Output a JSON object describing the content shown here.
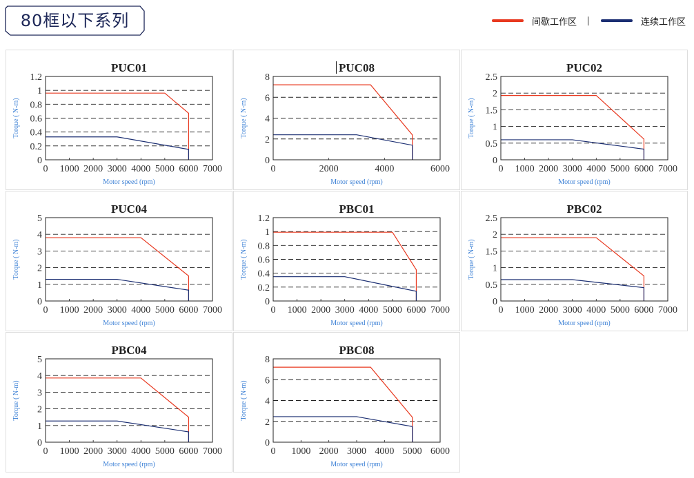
{
  "header": {
    "title": "80框以下系列"
  },
  "legend": {
    "items": [
      {
        "label": "间歇工作区",
        "color": "#e8381f"
      },
      {
        "label": "连续工作区",
        "color": "#1b2e72"
      }
    ]
  },
  "colors": {
    "intermittent": "#e8381f",
    "continuous": "#1b2e72",
    "axis_label": "#3a7fd5"
  },
  "chart_data": [
    {
      "type": "line",
      "title": "PUC01",
      "xlabel": "Motor speed (rpm)",
      "ylabel": "Torque ( N-m)",
      "xlim": [
        0,
        7000
      ],
      "xticks": [
        0,
        1000,
        2000,
        3000,
        4000,
        5000,
        6000,
        7000
      ],
      "ylim": [
        0,
        1.2
      ],
      "yticks": [
        0,
        0.2,
        0.4,
        0.6,
        0.8,
        1,
        1.2
      ],
      "grid": "dashed-horizontal",
      "series": [
        {
          "key": "intermittent",
          "x": [
            0,
            5000,
            6000,
            6000
          ],
          "y": [
            0.96,
            0.96,
            0.67,
            0
          ]
        },
        {
          "key": "continuous",
          "x": [
            0,
            3000,
            6000,
            6000
          ],
          "y": [
            0.33,
            0.33,
            0.15,
            0
          ]
        }
      ]
    },
    {
      "type": "line",
      "title": "PUC08",
      "xlabel": "Motor speed (rpm)",
      "ylabel": "Torque ( N-m)",
      "xlim": [
        0,
        6000
      ],
      "xticks": [
        0,
        2000,
        4000,
        6000
      ],
      "ylim": [
        0,
        8
      ],
      "yticks": [
        0,
        2,
        4,
        6,
        8
      ],
      "grid": "dashed-horizontal",
      "series": [
        {
          "key": "intermittent",
          "x": [
            0,
            3500,
            5000,
            5000
          ],
          "y": [
            7.2,
            7.2,
            2.4,
            0
          ]
        },
        {
          "key": "continuous",
          "x": [
            0,
            3000,
            5000,
            5000
          ],
          "y": [
            2.4,
            2.4,
            1.4,
            0
          ]
        }
      ]
    },
    {
      "type": "line",
      "title": "PUC02",
      "xlabel": "Motor speed (rpm)",
      "ylabel": "Torque ( N-m)",
      "xlim": [
        0,
        7000
      ],
      "xticks": [
        0,
        1000,
        2000,
        3000,
        4000,
        5000,
        6000,
        7000
      ],
      "ylim": [
        0,
        2.5
      ],
      "yticks": [
        0,
        0.5,
        1,
        1.5,
        2,
        2.5
      ],
      "grid": "dashed-horizontal",
      "series": [
        {
          "key": "intermittent",
          "x": [
            0,
            4000,
            6000,
            6000
          ],
          "y": [
            1.93,
            1.93,
            0.62,
            0
          ]
        },
        {
          "key": "continuous",
          "x": [
            0,
            3000,
            6000,
            6000
          ],
          "y": [
            0.6,
            0.6,
            0.32,
            0
          ]
        }
      ]
    },
    {
      "type": "line",
      "title": "PUC04",
      "xlabel": "Motor speed (rpm)",
      "ylabel": "Torque ( N-m)",
      "xlim": [
        0,
        7000
      ],
      "xticks": [
        0,
        1000,
        2000,
        3000,
        4000,
        5000,
        6000,
        7000
      ],
      "ylim": [
        0,
        5
      ],
      "yticks": [
        0,
        1,
        2,
        3,
        4,
        5
      ],
      "grid": "dashed-horizontal",
      "series": [
        {
          "key": "intermittent",
          "x": [
            0,
            4000,
            6000,
            6000
          ],
          "y": [
            3.8,
            3.8,
            1.5,
            0
          ]
        },
        {
          "key": "continuous",
          "x": [
            0,
            3000,
            6000,
            6000
          ],
          "y": [
            1.3,
            1.3,
            0.65,
            0
          ]
        }
      ]
    },
    {
      "type": "line",
      "title": "PBC01",
      "xlabel": "Motor speed (rpm)",
      "ylabel": "Torque ( N-m)",
      "xlim": [
        0,
        7000
      ],
      "xticks": [
        0,
        1000,
        2000,
        3000,
        4000,
        5000,
        6000,
        7000
      ],
      "ylim": [
        0,
        1.2
      ],
      "yticks": [
        0,
        0.2,
        0.4,
        0.6,
        0.8,
        1,
        1.2
      ],
      "grid": "dashed-horizontal",
      "series": [
        {
          "key": "intermittent",
          "x": [
            0,
            5000,
            6000,
            6000
          ],
          "y": [
            0.99,
            0.99,
            0.45,
            0
          ]
        },
        {
          "key": "continuous",
          "x": [
            0,
            3000,
            6000,
            6000
          ],
          "y": [
            0.35,
            0.35,
            0.14,
            0
          ]
        }
      ]
    },
    {
      "type": "line",
      "title": "PBC02",
      "xlabel": "Motor speed (rpm)",
      "ylabel": "Torque ( N-m)",
      "xlim": [
        0,
        7000
      ],
      "xticks": [
        0,
        1000,
        2000,
        3000,
        4000,
        5000,
        6000,
        7000
      ],
      "ylim": [
        0,
        2.5
      ],
      "yticks": [
        0,
        0.5,
        1,
        1.5,
        2,
        2.5
      ],
      "grid": "dashed-horizontal",
      "series": [
        {
          "key": "intermittent",
          "x": [
            0,
            4000,
            6000,
            6000
          ],
          "y": [
            1.9,
            1.9,
            0.75,
            0
          ]
        },
        {
          "key": "continuous",
          "x": [
            0,
            3000,
            6000,
            6000
          ],
          "y": [
            0.64,
            0.64,
            0.4,
            0
          ]
        }
      ]
    },
    {
      "type": "line",
      "title": "PBC04",
      "xlabel": "Motor speed (rpm)",
      "ylabel": "Torque ( N-m)",
      "xlim": [
        0,
        7000
      ],
      "xticks": [
        0,
        1000,
        2000,
        3000,
        4000,
        5000,
        6000,
        7000
      ],
      "ylim": [
        0,
        5
      ],
      "yticks": [
        0,
        1,
        2,
        3,
        4,
        5
      ],
      "grid": "dashed-horizontal",
      "series": [
        {
          "key": "intermittent",
          "x": [
            0,
            4000,
            6000,
            6000
          ],
          "y": [
            3.85,
            3.85,
            1.5,
            0
          ]
        },
        {
          "key": "continuous",
          "x": [
            0,
            3000,
            6000,
            6000
          ],
          "y": [
            1.27,
            1.27,
            0.62,
            0
          ]
        }
      ]
    },
    {
      "type": "line",
      "title": "PBC08",
      "xlabel": "Motor speed (rpm)",
      "ylabel": "Torque ( N-m)",
      "xlim": [
        0,
        6000
      ],
      "xticks": [
        0,
        1000,
        2000,
        3000,
        4000,
        5000,
        6000
      ],
      "ylim": [
        0,
        8
      ],
      "yticks": [
        0,
        2,
        4,
        6,
        8
      ],
      "grid": "dashed-horizontal",
      "series": [
        {
          "key": "intermittent",
          "x": [
            0,
            3500,
            5000,
            5000
          ],
          "y": [
            7.2,
            7.2,
            2.4,
            0
          ]
        },
        {
          "key": "continuous",
          "x": [
            0,
            3000,
            5000,
            5000
          ],
          "y": [
            2.45,
            2.45,
            1.5,
            0
          ]
        }
      ]
    }
  ]
}
